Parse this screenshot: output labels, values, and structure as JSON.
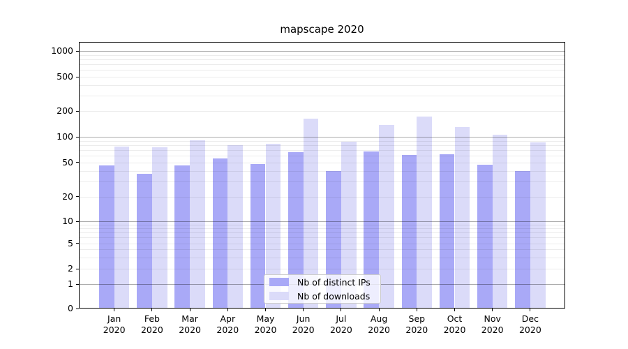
{
  "figure": {
    "title": "mapscape 2020",
    "background_color": "#ffffff"
  },
  "chart_data": {
    "type": "bar",
    "title": "mapscape 2020",
    "categories": [
      "Jan 2020",
      "Feb 2020",
      "Mar 2020",
      "Apr 2020",
      "May 2020",
      "Jun 2020",
      "Jul 2020",
      "Aug 2020",
      "Sep 2020",
      "Oct 2020",
      "Nov 2020",
      "Dec 2020"
    ],
    "series": [
      {
        "name": "Nb of distinct IPs",
        "color": "#a9a9f7",
        "values": [
          46,
          37,
          46,
          56,
          48,
          66,
          40,
          67,
          61,
          62,
          47,
          40
        ]
      },
      {
        "name": "Nb of downloads",
        "color": "#dbdbf9",
        "values": [
          77,
          76,
          91,
          80,
          83,
          163,
          88,
          137,
          173,
          129,
          105,
          86
        ]
      }
    ],
    "y_axis": {
      "scale": "log-like (asinh), includes 0",
      "tick_values": [
        0,
        1,
        2,
        5,
        10,
        20,
        50,
        100,
        200,
        500,
        1000
      ],
      "tick_labels": [
        "0",
        "1",
        "2",
        "5",
        "10",
        "20",
        "50",
        "100",
        "200",
        "500",
        "1000"
      ],
      "ylim": [
        0,
        1300
      ],
      "grid": "major and minor gridlines, drawn over bars"
    },
    "x_axis": {
      "tick_label_lines": 2,
      "second_line": "2020"
    },
    "legend": {
      "position": "lower-center",
      "entries": [
        "Nb of distinct IPs",
        "Nb of downloads"
      ]
    }
  }
}
